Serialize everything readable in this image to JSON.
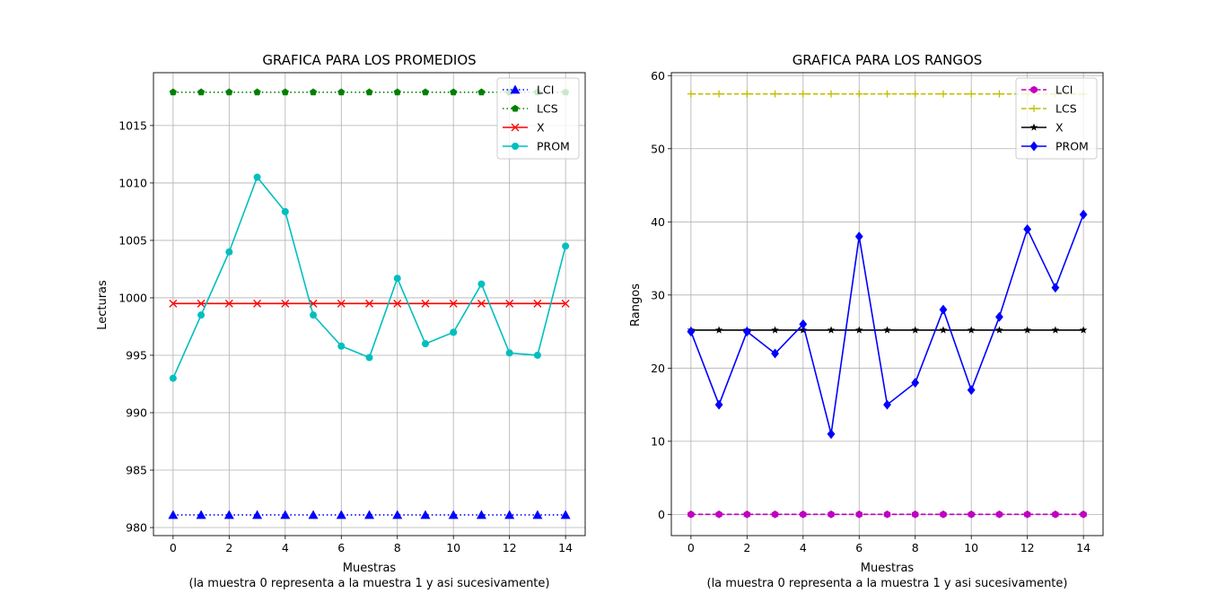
{
  "chart_data": [
    {
      "type": "line",
      "title": "GRAFICA PARA LOS PROMEDIOS",
      "xlabel": "Muestras",
      "xlabel_note": "(la muestra 0 representa a la muestra 1 y asi sucesivamente)",
      "ylabel": "Lecturas",
      "x": [
        0,
        1,
        2,
        3,
        4,
        5,
        6,
        7,
        8,
        9,
        10,
        11,
        12,
        13,
        14
      ],
      "xlim": [
        -0.7,
        14.7
      ],
      "ylim": [
        979.3,
        1019.6
      ],
      "xticks": [
        0,
        2,
        4,
        6,
        8,
        10,
        12,
        14
      ],
      "yticks": [
        980,
        985,
        990,
        995,
        1000,
        1005,
        1010,
        1015
      ],
      "grid": true,
      "legend_position": "top-right",
      "series": [
        {
          "name": "LCI",
          "color": "#0000ff",
          "linestyle": "dotted",
          "marker": "triangle",
          "values": [
            981.1,
            981.1,
            981.1,
            981.1,
            981.1,
            981.1,
            981.1,
            981.1,
            981.1,
            981.1,
            981.1,
            981.1,
            981.1,
            981.1,
            981.1
          ]
        },
        {
          "name": "LCS",
          "color": "#008000",
          "linestyle": "dotted",
          "marker": "pentagon",
          "values": [
            1017.9,
            1017.9,
            1017.9,
            1017.9,
            1017.9,
            1017.9,
            1017.9,
            1017.9,
            1017.9,
            1017.9,
            1017.9,
            1017.9,
            1017.9,
            1017.9,
            1017.9
          ]
        },
        {
          "name": "X",
          "color": "#ff0000",
          "linestyle": "solid",
          "marker": "x",
          "values": [
            999.5,
            999.5,
            999.5,
            999.5,
            999.5,
            999.5,
            999.5,
            999.5,
            999.5,
            999.5,
            999.5,
            999.5,
            999.5,
            999.5,
            999.5
          ]
        },
        {
          "name": "PROM",
          "color": "#00bfbf",
          "linestyle": "solid",
          "marker": "circle",
          "values": [
            993.0,
            998.5,
            1004.0,
            1010.5,
            1007.5,
            998.5,
            995.8,
            994.8,
            1001.7,
            996.0,
            997.0,
            1001.2,
            995.2,
            995.0,
            1004.5
          ]
        }
      ]
    },
    {
      "type": "line",
      "title": "GRAFICA PARA LOS RANGOS",
      "xlabel": "Muestras",
      "xlabel_note": "(la muestra 0 representa a la muestra 1 y asi sucesivamente)",
      "ylabel": "Rangos",
      "x": [
        0,
        1,
        2,
        3,
        4,
        5,
        6,
        7,
        8,
        9,
        10,
        11,
        12,
        13,
        14
      ],
      "xlim": [
        -0.7,
        14.7
      ],
      "ylim": [
        -2.9,
        60.4
      ],
      "xticks": [
        0,
        2,
        4,
        6,
        8,
        10,
        12,
        14
      ],
      "yticks": [
        0,
        10,
        20,
        30,
        40,
        50,
        60
      ],
      "grid": true,
      "legend_position": "top-right",
      "series": [
        {
          "name": "LCI",
          "color": "#bf00bf",
          "linestyle": "dashed",
          "marker": "hexagon",
          "values": [
            0,
            0,
            0,
            0,
            0,
            0,
            0,
            0,
            0,
            0,
            0,
            0,
            0,
            0,
            0
          ]
        },
        {
          "name": "LCS",
          "color": "#bfbf00",
          "linestyle": "dashed",
          "marker": "plus",
          "values": [
            57.5,
            57.5,
            57.5,
            57.5,
            57.5,
            57.5,
            57.5,
            57.5,
            57.5,
            57.5,
            57.5,
            57.5,
            57.5,
            57.5,
            57.5
          ]
        },
        {
          "name": "X",
          "color": "#000000",
          "linestyle": "solid",
          "marker": "star",
          "values": [
            25.2,
            25.2,
            25.2,
            25.2,
            25.2,
            25.2,
            25.2,
            25.2,
            25.2,
            25.2,
            25.2,
            25.2,
            25.2,
            25.2,
            25.2
          ]
        },
        {
          "name": "PROM",
          "color": "#0000ff",
          "linestyle": "solid",
          "marker": "diamond",
          "values": [
            25,
            15,
            25,
            22,
            26,
            11,
            38,
            15,
            18,
            28,
            17,
            27,
            39,
            31,
            41
          ]
        }
      ]
    }
  ]
}
